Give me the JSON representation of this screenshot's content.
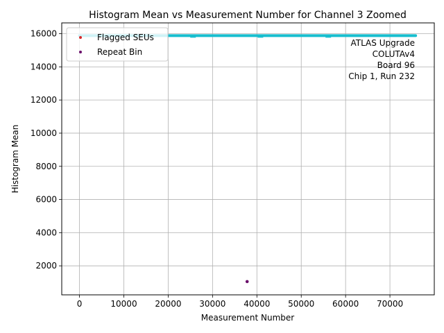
{
  "chart_data": {
    "type": "scatter",
    "title": "Histogram Mean vs Measurement Number for Channel 3 Zoomed",
    "xlabel": "Measurement Number",
    "ylabel": "Histogram Mean",
    "xlim": [
      -4000,
      80000
    ],
    "ylim": [
      250,
      16650
    ],
    "xticks": [
      0,
      10000,
      20000,
      30000,
      40000,
      50000,
      60000,
      70000
    ],
    "yticks": [
      2000,
      4000,
      6000,
      8000,
      10000,
      12000,
      14000,
      16000
    ],
    "grid": true,
    "legend_position": "top-left",
    "main_series": {
      "color": "#17becf",
      "x_start": 0,
      "x_end": 75800,
      "y_value": 15880,
      "dips": [
        {
          "x": 25600,
          "y": 15800
        },
        {
          "x": 40800,
          "y": 15800
        },
        {
          "x": 56100,
          "y": 15800
        }
      ]
    },
    "series": [
      {
        "name": "Flagged SEUs",
        "color": "#d62728",
        "points": []
      },
      {
        "name": "Repeat Bin",
        "color": "#6a0d6a",
        "points": [
          {
            "x": 37800,
            "y": 1050
          }
        ]
      }
    ],
    "annotation": [
      "ATLAS Upgrade",
      "COLUTAv4",
      "Board 96",
      "Chip 1, Run 232"
    ]
  }
}
